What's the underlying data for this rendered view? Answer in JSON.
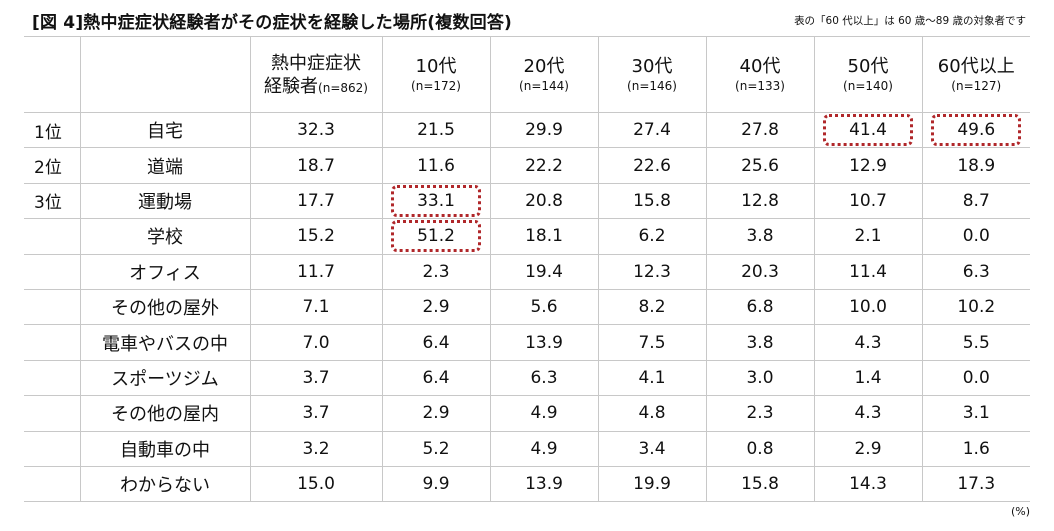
{
  "title": "[図 4]熱中症症状経験者がその症状を経験した場所(複数回答)",
  "note": "表の「60 代以上」は 60 歳〜89 歳の対象者です",
  "unit": "(%)",
  "columns": [
    {
      "top": "熱中症症状",
      "label": "経験者",
      "n": "(n=862)"
    },
    {
      "top": "10代",
      "n": "(n=172)"
    },
    {
      "top": "20代",
      "n": "(n=144)"
    },
    {
      "top": "30代",
      "n": "(n=146)"
    },
    {
      "top": "40代",
      "n": "(n=133)"
    },
    {
      "top": "50代",
      "n": "(n=140)"
    },
    {
      "top": "60代以上",
      "n": "(n=127)"
    }
  ],
  "chart_data": {
    "type": "table",
    "title": "[図 4]熱中症症状経験者がその症状を経験した場所(複数回答)",
    "rows": [
      {
        "rank": "1位",
        "place": "自宅",
        "values": [
          "32.3",
          "21.5",
          "29.9",
          "27.4",
          "27.8",
          "41.4",
          "49.6"
        ],
        "highlight": [
          5,
          6
        ]
      },
      {
        "rank": "2位",
        "place": "道端",
        "values": [
          "18.7",
          "11.6",
          "22.2",
          "22.6",
          "25.6",
          "12.9",
          "18.9"
        ],
        "highlight": []
      },
      {
        "rank": "3位",
        "place": "運動場",
        "values": [
          "17.7",
          "33.1",
          "20.8",
          "15.8",
          "12.8",
          "10.7",
          "8.7"
        ],
        "highlight": [
          1
        ]
      },
      {
        "rank": "",
        "place": "学校",
        "values": [
          "15.2",
          "51.2",
          "18.1",
          "6.2",
          "3.8",
          "2.1",
          "0.0"
        ],
        "highlight": [
          1
        ]
      },
      {
        "rank": "",
        "place": "オフィス",
        "values": [
          "11.7",
          "2.3",
          "19.4",
          "12.3",
          "20.3",
          "11.4",
          "6.3"
        ],
        "highlight": []
      },
      {
        "rank": "",
        "place": "その他の屋外",
        "values": [
          "7.1",
          "2.9",
          "5.6",
          "8.2",
          "6.8",
          "10.0",
          "10.2"
        ],
        "highlight": []
      },
      {
        "rank": "",
        "place": "電車やバスの中",
        "values": [
          "7.0",
          "6.4",
          "13.9",
          "7.5",
          "3.8",
          "4.3",
          "5.5"
        ],
        "highlight": []
      },
      {
        "rank": "",
        "place": "スポーツジム",
        "values": [
          "3.7",
          "6.4",
          "6.3",
          "4.1",
          "3.0",
          "1.4",
          "0.0"
        ],
        "highlight": []
      },
      {
        "rank": "",
        "place": "その他の屋内",
        "values": [
          "3.7",
          "2.9",
          "4.9",
          "4.8",
          "2.3",
          "4.3",
          "3.1"
        ],
        "highlight": []
      },
      {
        "rank": "",
        "place": "自動車の中",
        "values": [
          "3.2",
          "5.2",
          "4.9",
          "3.4",
          "0.8",
          "2.9",
          "1.6"
        ],
        "highlight": []
      },
      {
        "rank": "",
        "place": "わからない",
        "values": [
          "15.0",
          "9.9",
          "13.9",
          "19.9",
          "15.8",
          "14.3",
          "17.3"
        ],
        "highlight": []
      }
    ]
  },
  "colors": {
    "highlight": "#b0272a",
    "grid": "#c8c8c8"
  }
}
